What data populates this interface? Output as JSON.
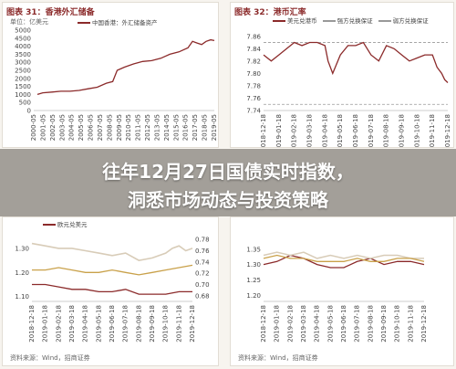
{
  "headline": {
    "line1": "往年12月27日国债实时指数，",
    "line2": "洞悉市场动态与投资策略"
  },
  "watermark": "",
  "colors": {
    "title": "#8b2a2a",
    "main_line": "#8b2a2a",
    "band_upper": "#d8ccb8",
    "band_lower": "#c9a14a"
  },
  "chart_data": [
    {
      "type": "line",
      "title": "图表 31：香港外汇储备",
      "unit": "单位：亿美元",
      "source": "资料来源：Wind，招商证券",
      "legend": [
        "中国香港：外汇储备资产"
      ],
      "x_ticks": [
        "2000-05",
        "2001-05",
        "2002-05",
        "2003-05",
        "2004-05",
        "2005-05",
        "2006-05",
        "2007-05",
        "2008-05",
        "2009-05",
        "2010-05",
        "2011-05",
        "2012-05",
        "2013-05",
        "2014-05",
        "2015-05",
        "2016-05",
        "2017-05",
        "2018-05",
        "2019-05"
      ],
      "y_ticks": [
        0,
        500,
        1000,
        1500,
        2000,
        2500,
        3000,
        3500,
        4000,
        4500,
        5000
      ],
      "ylim": [
        0,
        5000
      ],
      "series": [
        {
          "x": [
            2000.4,
            2001,
            2002,
            2003,
            2004,
            2005,
            2006,
            2007,
            2008,
            2008.7,
            2009.2,
            2010,
            2011,
            2012,
            2013,
            2014,
            2015,
            2016,
            2017,
            2017.5,
            2018,
            2018.5,
            2019,
            2019.5,
            2019.9
          ],
          "values": [
            1000,
            1100,
            1150,
            1200,
            1200,
            1250,
            1350,
            1450,
            1700,
            1800,
            2500,
            2700,
            2900,
            3050,
            3100,
            3250,
            3500,
            3650,
            3900,
            4300,
            4200,
            4100,
            4300,
            4400,
            4350
          ]
        }
      ]
    },
    {
      "type": "line",
      "title": "图表 32：港币汇率",
      "legend": [
        "美元兑港币",
        "强方兑换保证",
        "弱方兑换保证"
      ],
      "source": "",
      "x_ticks": [
        "2018-12-18",
        "2019-01-18",
        "2019-02-18",
        "2019-03-18",
        "2019-04-18",
        "2019-05-18",
        "2019-06-18",
        "2019-07-18",
        "2019-08-18",
        "2019-09-18",
        "2019-10-18",
        "2019-11-18",
        "2019-12-18"
      ],
      "y_ticks": [
        7.74,
        7.76,
        7.78,
        7.8,
        7.82,
        7.84,
        7.86
      ],
      "ylim": [
        7.74,
        7.87
      ],
      "series": [
        {
          "name": "美元兑港币",
          "x": [
            0,
            0.5,
            1,
            1.5,
            2,
            2.5,
            3,
            3.5,
            4,
            4.2,
            4.5,
            5,
            5.5,
            6,
            6.5,
            7,
            7.5,
            8,
            8.5,
            9,
            9.5,
            10,
            10.5,
            11,
            11.3,
            11.6,
            11.8,
            12
          ],
          "values": [
            7.83,
            7.82,
            7.83,
            7.84,
            7.85,
            7.845,
            7.85,
            7.85,
            7.845,
            7.82,
            7.8,
            7.83,
            7.845,
            7.845,
            7.85,
            7.83,
            7.82,
            7.845,
            7.84,
            7.83,
            7.82,
            7.825,
            7.83,
            7.83,
            7.81,
            7.8,
            7.79,
            7.785
          ]
        }
      ]
    },
    {
      "type": "line",
      "title": "",
      "legend": [
        "欧元兑美元"
      ],
      "source": "资料来源：Wind，招商证券",
      "x_ticks": [
        "2018-12-18",
        "2019-01-18",
        "2019-02-18",
        "2019-03-18",
        "2019-04-18",
        "2019-05-18",
        "2019-06-18",
        "2019-07-18",
        "2019-08-18",
        "2019-09-18",
        "2019-10-18",
        "2019-11-18",
        "2019-12-18"
      ],
      "y_ticks_left": [
        1.1,
        1.2,
        1.3
      ],
      "y_ticks_right": [
        0.68,
        0.7,
        0.72,
        0.74,
        0.76,
        0.78
      ],
      "ylim": [
        1.08,
        1.36
      ],
      "series": [
        {
          "x": [
            0,
            1,
            2,
            3,
            4,
            5,
            6,
            7,
            8,
            9,
            10,
            10.5,
            11,
            11.5,
            12
          ],
          "values": [
            1.32,
            1.31,
            1.3,
            1.3,
            1.29,
            1.28,
            1.27,
            1.28,
            1.25,
            1.26,
            1.28,
            1.3,
            1.31,
            1.29,
            1.3
          ]
        },
        {
          "x": [
            0,
            1,
            2,
            3,
            4,
            5,
            6,
            7,
            8,
            9,
            10,
            11,
            12
          ],
          "values": [
            1.15,
            1.15,
            1.14,
            1.13,
            1.13,
            1.12,
            1.12,
            1.13,
            1.11,
            1.11,
            1.11,
            1.12,
            1.12
          ]
        },
        {
          "x": [
            0,
            1,
            2,
            3,
            4,
            5,
            6,
            7,
            8,
            9,
            10,
            11,
            12
          ],
          "values": [
            1.21,
            1.21,
            1.22,
            1.21,
            1.2,
            1.2,
            1.21,
            1.2,
            1.19,
            1.2,
            1.21,
            1.22,
            1.23
          ]
        }
      ]
    },
    {
      "type": "line",
      "title": "",
      "legend": [],
      "source": "资料来源：Wind，招商证券",
      "x_ticks": [
        "2018-12-18",
        "2019-01-18",
        "2019-02-18",
        "2019-03-18",
        "2019-04-18",
        "2019-05-18",
        "2019-06-18",
        "2019-07-18",
        "2019-08-18",
        "2019-09-18",
        "2019-10-18",
        "2019-11-18",
        "2019-12-18"
      ],
      "y_ticks": [
        1.2,
        1.25,
        1.3,
        1.35
      ],
      "ylim": [
        1.18,
        1.4
      ],
      "series": [
        {
          "x": [
            0,
            1,
            2,
            3,
            4,
            5,
            6,
            7,
            8,
            9,
            10,
            11,
            12
          ],
          "values": [
            1.3,
            1.31,
            1.33,
            1.32,
            1.3,
            1.29,
            1.29,
            1.31,
            1.32,
            1.3,
            1.31,
            1.31,
            1.3
          ]
        },
        {
          "x": [
            0,
            1,
            2,
            3,
            4,
            5,
            6,
            7,
            8,
            9,
            10,
            11,
            12
          ],
          "values": [
            1.33,
            1.34,
            1.33,
            1.34,
            1.32,
            1.33,
            1.32,
            1.33,
            1.32,
            1.33,
            1.33,
            1.32,
            1.32
          ]
        },
        {
          "x": [
            0,
            1,
            2,
            3,
            4,
            5,
            6,
            7,
            8,
            9,
            10,
            11,
            12
          ],
          "values": [
            1.32,
            1.33,
            1.32,
            1.32,
            1.31,
            1.31,
            1.31,
            1.32,
            1.31,
            1.31,
            1.32,
            1.32,
            1.31
          ]
        }
      ]
    }
  ]
}
